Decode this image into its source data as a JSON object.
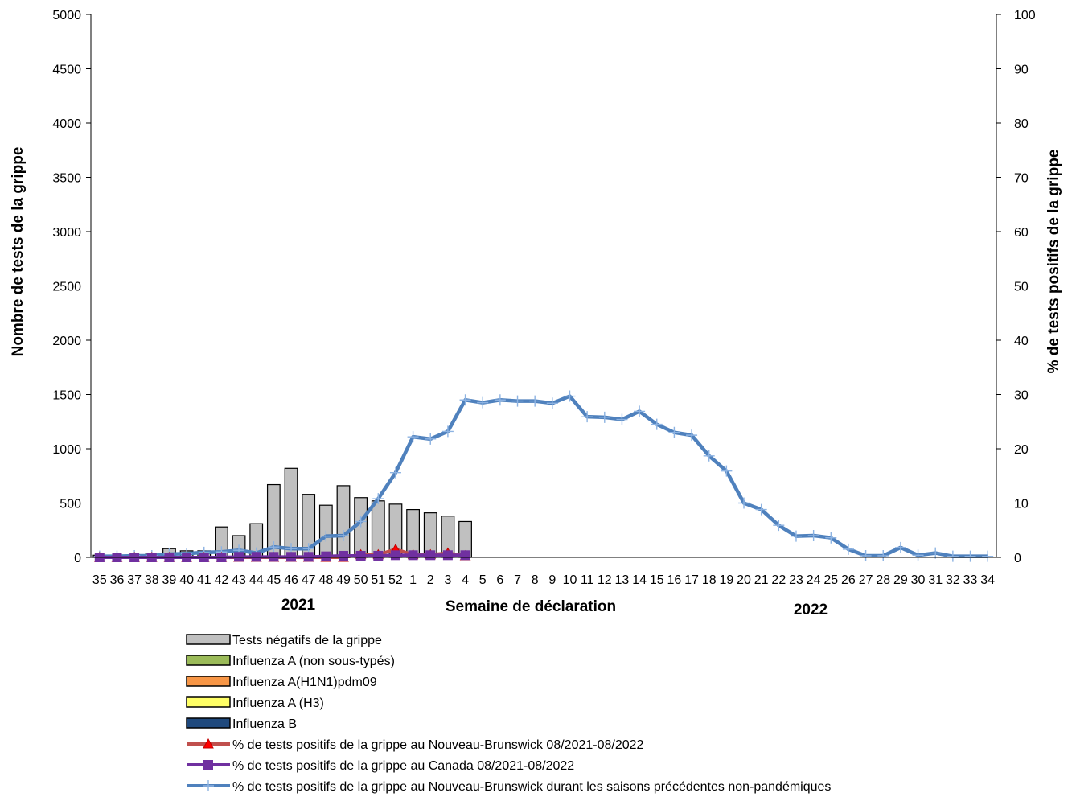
{
  "chart_data": {
    "type": "bar+line",
    "categories": [
      "35",
      "36",
      "37",
      "38",
      "39",
      "40",
      "41",
      "42",
      "43",
      "44",
      "45",
      "46",
      "47",
      "48",
      "49",
      "50",
      "51",
      "52",
      "1",
      "2",
      "3",
      "4",
      "5",
      "6",
      "7",
      "8",
      "9",
      "10",
      "11",
      "12",
      "13",
      "14",
      "15",
      "16",
      "17",
      "18",
      "19",
      "20",
      "21",
      "22",
      "23",
      "24",
      "25",
      "26",
      "27",
      "28",
      "29",
      "30",
      "31",
      "32",
      "33",
      "34"
    ],
    "xlabel": "Semaine de déclaration",
    "ylabel_left": "Nombre de tests de la grippe",
    "ylabel_right": "% de tests positifs de la grippe",
    "year_labels": [
      "2021",
      "2022"
    ],
    "ylim_left": [
      0,
      5000
    ],
    "ylim_right": [
      0,
      100
    ],
    "left_ticks": [
      0,
      500,
      1000,
      1500,
      2000,
      2500,
      3000,
      3500,
      4000,
      4500,
      5000
    ],
    "right_ticks": [
      0,
      10,
      20,
      30,
      40,
      50,
      60,
      70,
      80,
      90,
      100
    ],
    "bar_series": [
      {
        "name": "Tests négatifs de la grippe",
        "color": "#c0c0c0",
        "values": [
          20,
          20,
          25,
          30,
          80,
          60,
          60,
          280,
          200,
          310,
          670,
          820,
          580,
          480,
          660,
          550,
          520,
          490,
          440,
          410,
          380,
          330,
          null,
          null,
          null,
          null,
          null,
          null,
          null,
          null,
          null,
          null,
          null,
          null,
          null,
          null,
          null,
          null,
          null,
          null,
          null,
          null,
          null,
          null,
          null,
          null,
          null,
          null,
          null,
          null,
          null,
          null
        ]
      },
      {
        "name": "Influenza A (non sous-typés)",
        "color": "#9bbb59",
        "values": []
      },
      {
        "name": "Influenza A(H1N1)pdm09",
        "color": "#f79646",
        "values": []
      },
      {
        "name": "Influenza A (H3)",
        "color": "#ffff66",
        "values": []
      },
      {
        "name": "Influenza B",
        "color": "#1f497d",
        "values": []
      }
    ],
    "line_series": [
      {
        "name": "% de tests positifs de la grippe  au Nouveau-Brunswick 08/2021-08/2022",
        "color": "#c0504d",
        "marker": "triangle",
        "values": [
          0,
          0,
          0,
          0,
          0,
          0,
          0,
          0,
          0,
          0,
          0,
          0,
          0,
          0,
          0,
          0.5,
          0.5,
          1.5,
          0.5,
          0.5,
          0.8,
          0.3,
          null,
          null,
          null,
          null,
          null,
          null,
          null,
          null,
          null,
          null,
          null,
          null,
          null,
          null,
          null,
          null,
          null,
          null,
          null,
          null,
          null,
          null,
          null,
          null,
          null,
          null,
          null,
          null,
          null,
          null
        ]
      },
      {
        "name": "% de tests positifs de la grippe  au Canada 08/2021-08/2022",
        "color": "#7030a0",
        "marker": "square",
        "values": [
          0,
          0,
          0,
          0,
          0,
          0,
          0,
          0,
          0.1,
          0.1,
          0.1,
          0.1,
          0.1,
          0.2,
          0.3,
          0.3,
          0.3,
          0.4,
          0.4,
          0.4,
          0.4,
          0.4,
          null,
          null,
          null,
          null,
          null,
          null,
          null,
          null,
          null,
          null,
          null,
          null,
          null,
          null,
          null,
          null,
          null,
          null,
          null,
          null,
          null,
          null,
          null,
          null,
          null,
          null,
          null,
          null,
          null,
          null
        ]
      },
      {
        "name": "% de tests positifs de la grippe  au Nouveau-Brunswick durant les saisons précédentes non-pandémiques",
        "color": "#4f81bd",
        "marker": "plus",
        "values": [
          0.2,
          0.2,
          0.3,
          0.3,
          0.6,
          0.7,
          0.9,
          1.0,
          1.3,
          0.8,
          1.9,
          1.6,
          1.6,
          3.9,
          4.0,
          6.6,
          10.8,
          15.6,
          22.2,
          21.8,
          23.2,
          29.0,
          28.5,
          29.0,
          28.8,
          28.8,
          28.4,
          29.7,
          25.9,
          25.8,
          25.4,
          26.9,
          24.5,
          23.0,
          22.5,
          18.7,
          15.9,
          10.0,
          8.8,
          5.9,
          3.9,
          4.0,
          3.6,
          1.5,
          0.3,
          0.3,
          1.8,
          0.4,
          0.8,
          0.2,
          0.2,
          0.2
        ]
      }
    ],
    "legend_position": "bottom"
  }
}
